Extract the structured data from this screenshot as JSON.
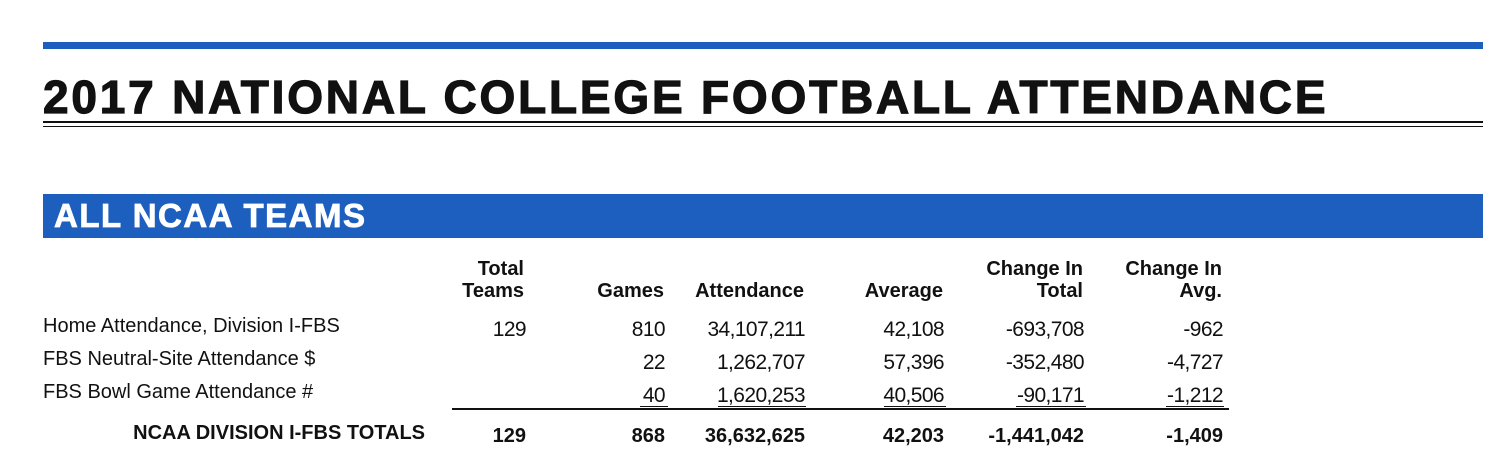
{
  "document_title": "2017 NATIONAL COLLEGE FOOTBALL ATTENDANCE",
  "section": {
    "title": "ALL NCAA TEAMS"
  },
  "table": {
    "headers": {
      "total_teams": [
        "Total",
        "Teams"
      ],
      "games": "Games",
      "attendance": "Attendance",
      "average": "Average",
      "change_total": [
        "Change In",
        "Total"
      ],
      "change_avg": [
        "Change In",
        "Avg."
      ]
    },
    "rows": [
      {
        "label": "Home Attendance, Division I-FBS",
        "total_teams": "129",
        "games": "810",
        "attendance": "34,107,211",
        "average": "42,108",
        "change_total": "-693,708",
        "change_avg": "-962"
      },
      {
        "label": "FBS Neutral-Site Attendance $",
        "total_teams": "",
        "games": "22",
        "attendance": "1,262,707",
        "average": "57,396",
        "change_total": "-352,480",
        "change_avg": "-4,727"
      },
      {
        "label": "FBS Bowl Game Attendance #",
        "total_teams": "",
        "games": "40",
        "attendance": "1,620,253",
        "average": "40,506",
        "change_total": "-90,171",
        "change_avg": "-1,212"
      }
    ],
    "totals": {
      "label": "NCAA DIVISION I-FBS TOTALS",
      "total_teams": "129",
      "games": "868",
      "attendance": "36,632,625",
      "average": "42,203",
      "change_total": "-1,441,042",
      "change_avg": "-1,409"
    }
  },
  "colors": {
    "accent": "#1d5fbf",
    "text": "#111111"
  }
}
